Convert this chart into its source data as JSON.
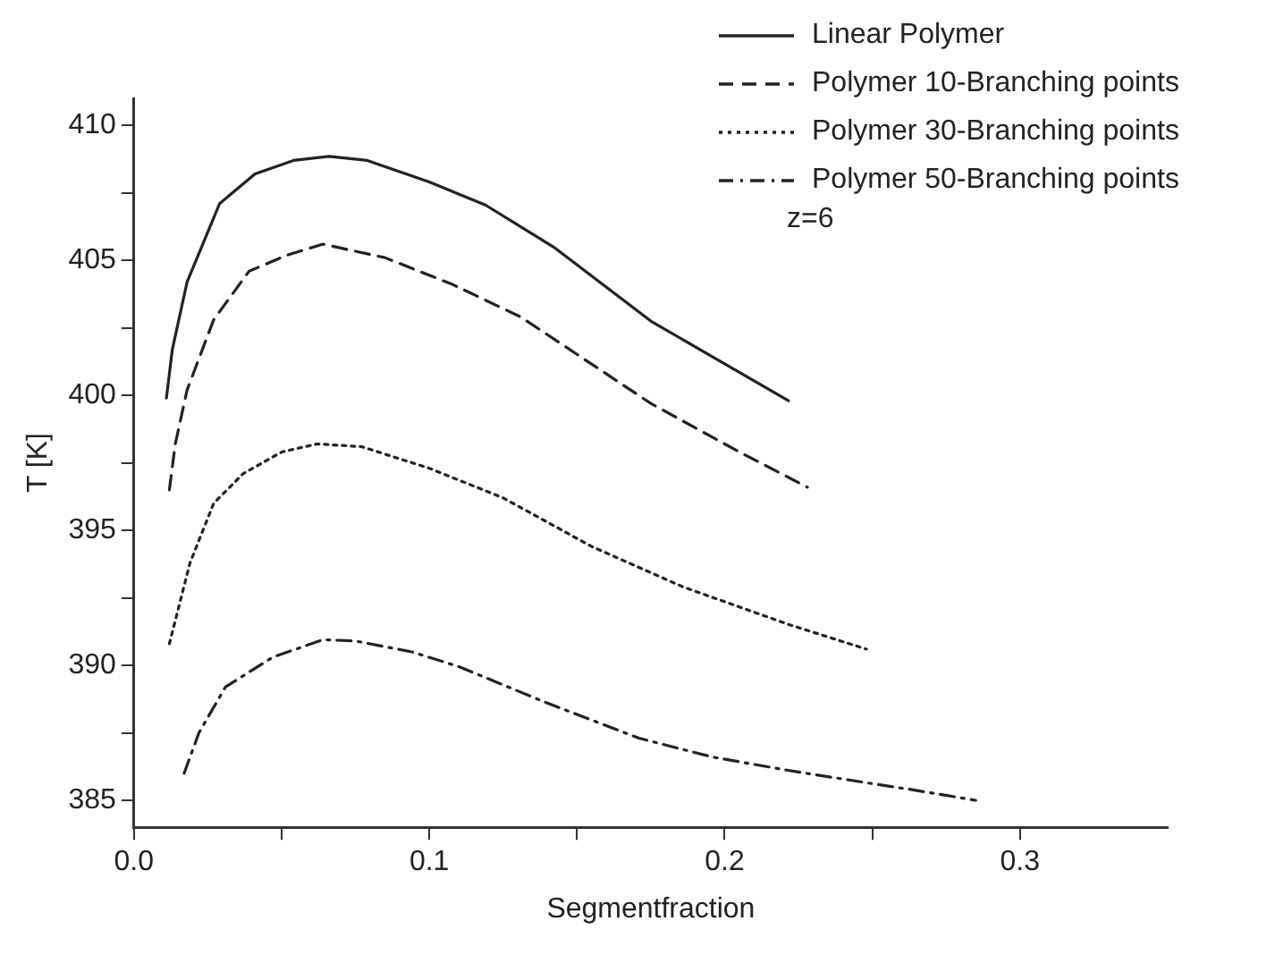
{
  "chart_data": {
    "type": "line",
    "xlabel": "Segmentfraction",
    "ylabel": "T [K]",
    "xlim": [
      0,
      0.35
    ],
    "ylim": [
      384,
      411
    ],
    "xticks": [
      {
        "value": 0,
        "label": "0.0"
      },
      {
        "value": 0.05,
        "label": null
      },
      0.1,
      {
        "value": 0.15,
        "label": null
      },
      0.2,
      {
        "value": 0.25,
        "label": null
      },
      0.3
    ],
    "yticks": [
      385,
      {
        "value": 387.5,
        "label": null
      },
      390,
      {
        "value": 392.5,
        "label": null
      },
      395,
      {
        "value": 397.5,
        "label": null
      },
      400,
      {
        "value": 402.5,
        "label": null
      },
      405,
      {
        "value": 407.5,
        "label": null
      },
      410
    ],
    "grid": false,
    "legend": "top right",
    "marker": "none",
    "annotations": [
      "z=6"
    ],
    "series": [
      {
        "name": "Linear Polymer",
        "color": "#222222",
        "line_style": "solid",
        "x": [
          0.011,
          0.013,
          0.018,
          0.029,
          0.041,
          0.054,
          0.066,
          0.079,
          0.1,
          0.119,
          0.142,
          0.175,
          0.2216
        ],
        "values": [
          399.9,
          401.7,
          404.2,
          407.1,
          408.2,
          408.7,
          408.85,
          408.7,
          407.9,
          407.05,
          405.5,
          402.75,
          399.8
        ]
      },
      {
        "name": "Polymer 10-Branching points",
        "color": "#222222",
        "line_style": "dashed",
        "x": [
          0.012,
          0.014,
          0.018,
          0.027,
          0.039,
          0.052,
          0.064,
          0.085,
          0.108,
          0.131,
          0.175,
          0.205,
          0.228
        ],
        "values": [
          396.5,
          398.2,
          400.2,
          402.8,
          404.6,
          405.2,
          405.6,
          405.1,
          404.1,
          402.9,
          399.7,
          397.9,
          396.6
        ]
      },
      {
        "name": "Polymer 30-Branching points",
        "color": "#222222",
        "line_style": "dotted",
        "x": [
          0.012,
          0.019,
          0.027,
          0.037,
          0.05,
          0.062,
          0.077,
          0.1,
          0.125,
          0.155,
          0.186,
          0.222,
          0.248
        ],
        "values": [
          390.8,
          393.8,
          396.0,
          397.1,
          397.9,
          398.2,
          398.1,
          397.3,
          396.2,
          394.4,
          392.9,
          391.5,
          390.6
        ]
      },
      {
        "name": "Polymer 50-Branching points",
        "color": "#222222",
        "line_style": "dashdot",
        "x": [
          0.017,
          0.022,
          0.031,
          0.047,
          0.064,
          0.075,
          0.094,
          0.11,
          0.14,
          0.171,
          0.196,
          0.222,
          0.251,
          0.263,
          0.285
        ],
        "values": [
          386.0,
          387.5,
          389.2,
          390.3,
          390.95,
          390.9,
          390.5,
          389.95,
          388.6,
          387.3,
          386.6,
          386.1,
          385.6,
          385.4,
          385.0
        ]
      }
    ]
  }
}
